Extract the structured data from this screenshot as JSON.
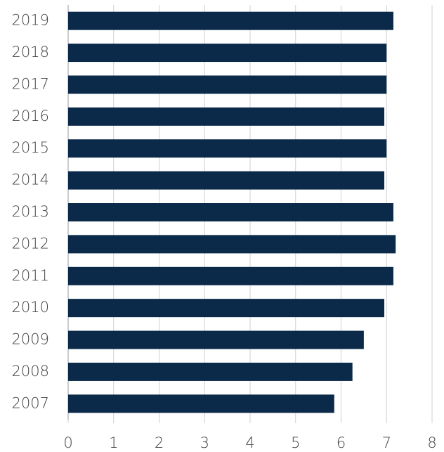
{
  "chart_data": {
    "type": "bar",
    "orientation": "horizontal",
    "categories": [
      "2007",
      "2008",
      "2009",
      "2010",
      "2011",
      "2012",
      "2013",
      "2014",
      "2015",
      "2016",
      "2017",
      "2018",
      "2019"
    ],
    "values": [
      5.85,
      6.25,
      6.5,
      6.95,
      7.15,
      7.2,
      7.15,
      6.95,
      7.0,
      6.95,
      7.0,
      7.0,
      7.15
    ],
    "color": "#0b2a4a",
    "xlim": [
      0,
      8
    ],
    "xticks": [
      0,
      1,
      2,
      3,
      4,
      5,
      6,
      7,
      8
    ],
    "grid": true
  }
}
